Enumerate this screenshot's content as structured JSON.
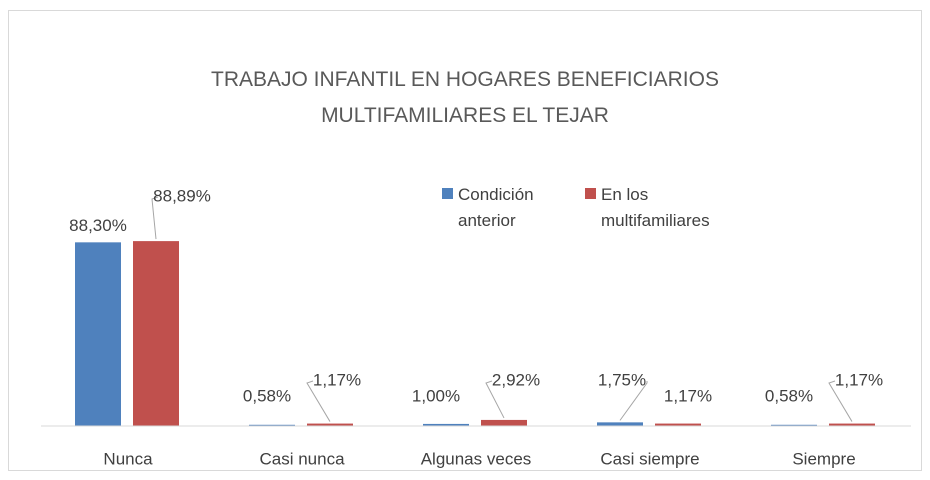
{
  "chart_data": {
    "type": "bar",
    "title": "TRABAJO INFANTIL EN HOGARES BENEFICIARIOS MULTIFAMILIARES EL TEJAR",
    "categories": [
      "Nunca",
      "Casi nunca",
      "Algunas veces",
      "Casi siempre",
      "Siempre"
    ],
    "series": [
      {
        "name": "Condición anterior",
        "color": "#4f81bd",
        "values": [
          88.3,
          0.58,
          1.0,
          1.75,
          0.58
        ],
        "value_labels": [
          "88,30%",
          "0,58%",
          "1,00%",
          "1,75%",
          "0,58%"
        ]
      },
      {
        "name": "En los multifamiliares",
        "color": "#c0504d",
        "values": [
          88.89,
          1.17,
          2.92,
          1.17,
          1.17
        ],
        "value_labels": [
          "88,89%",
          "1,17%",
          "2,92%",
          "1,17%",
          "1,17%"
        ]
      }
    ],
    "ylim": [
      0,
      100
    ]
  }
}
